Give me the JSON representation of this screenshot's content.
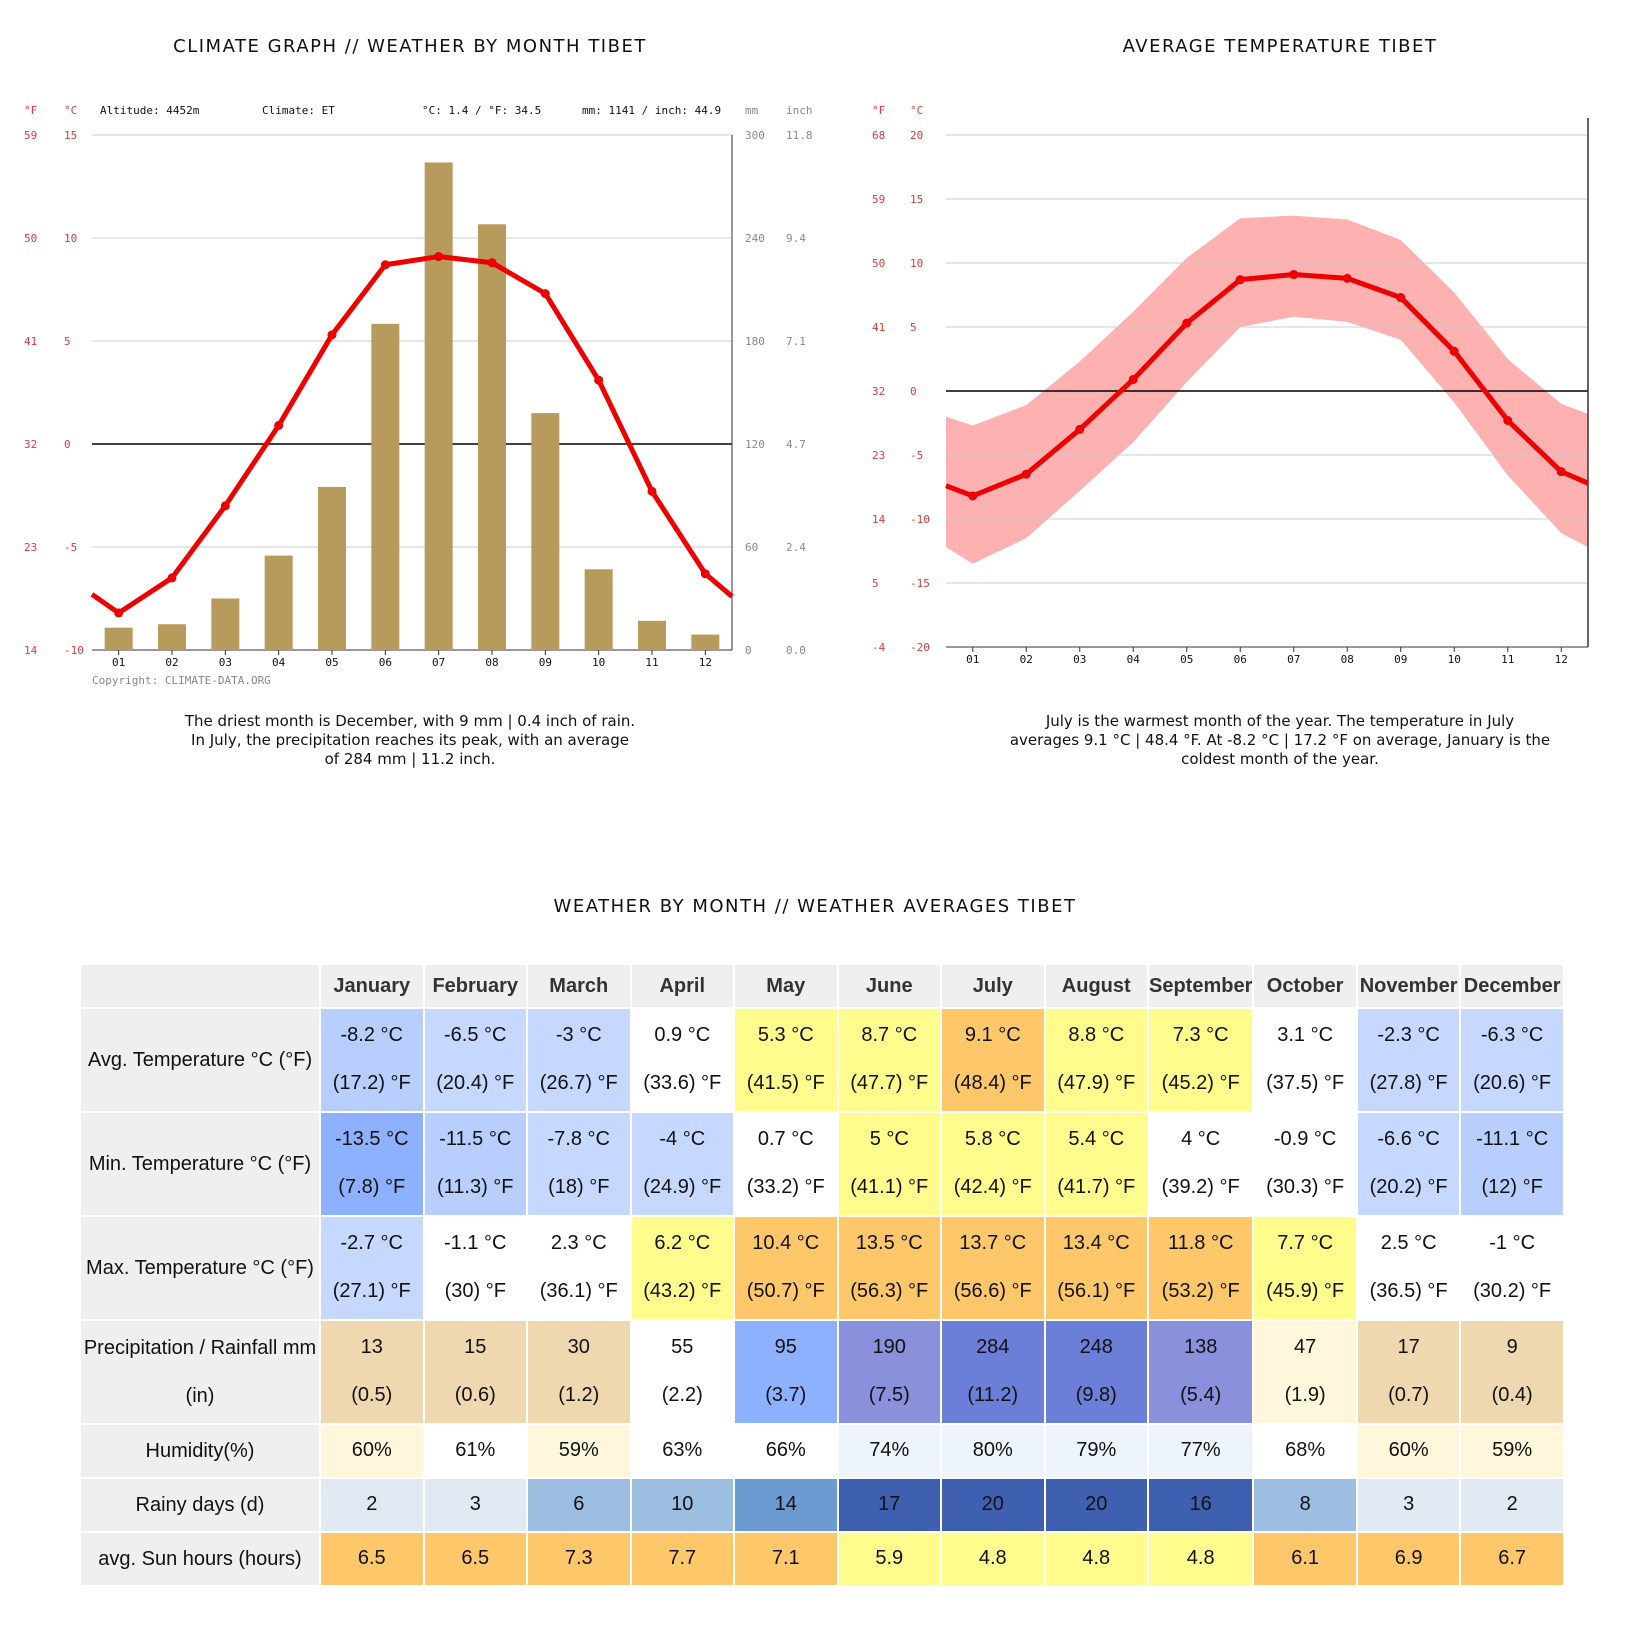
{
  "titles": {
    "climate_graph": "CLIMATE GRAPH // WEATHER BY MONTH TIBET",
    "avg_temperature": "AVERAGE TEMPERATURE TIBET",
    "table": "WEATHER BY MONTH // WEATHER AVERAGES TIBET"
  },
  "captions": {
    "climate_graph": [
      "The driest month is December, with 9 mm | 0.4 inch of rain.",
      "In July, the precipitation reaches its peak, with an average",
      "of 284 mm | 11.2 inch."
    ],
    "avg_temperature": [
      "July is the warmest month of the year. The temperature in July",
      "averages 9.1 °C | 48.4 °F. At -8.2 °C | 17.2 °F on average, January is the",
      "coldest month of the year."
    ]
  },
  "colors": {
    "temp_line": "#ee0000",
    "precip_bar": "#b79b5d",
    "temp_band": "#fdb1b1",
    "axis_label_red": "#d83b3b",
    "axis_label_grey": "#888888"
  },
  "chart_data": [
    {
      "type": "bar",
      "title": "CLIMATE GRAPH // WEATHER BY MONTH TIBET",
      "info": {
        "altitude": "Altitude: 4452m",
        "climate": "Climate: ET",
        "temp": "°C: 1.4 / °F: 34.5",
        "precip": "mm: 1141 / inch: 44.9"
      },
      "unit_labels": {
        "f": "°F",
        "c": "°C",
        "mm": "mm",
        "inch": "inch"
      },
      "copyright": "Copyright: CLIMATE-DATA.ORG",
      "categories": [
        "01",
        "02",
        "03",
        "04",
        "05",
        "06",
        "07",
        "08",
        "09",
        "10",
        "11",
        "12"
      ],
      "series": [
        {
          "name": "Precipitation (mm)",
          "type": "bar",
          "values": [
            13,
            15,
            30,
            55,
            95,
            190,
            284,
            248,
            138,
            47,
            17,
            9
          ]
        },
        {
          "name": "Avg. Temperature (°C)",
          "type": "line",
          "values": [
            -8.2,
            -6.5,
            -3,
            0.9,
            5.3,
            8.7,
            9.1,
            8.8,
            7.3,
            3.1,
            -2.3,
            -6.3
          ]
        }
      ],
      "y_left_c": {
        "range": [
          -10,
          15
        ],
        "ticks": [
          "15",
          "10",
          "5",
          "0",
          "-5",
          "-10"
        ]
      },
      "y_left_f": {
        "ticks": [
          "59",
          "50",
          "41",
          "32",
          "23",
          "14"
        ]
      },
      "y_right_mm": {
        "range": [
          0,
          300
        ],
        "ticks": [
          "300",
          "240",
          "180",
          "120",
          "60",
          "0"
        ]
      },
      "y_right_inch": {
        "ticks": [
          "11.8",
          "9.4",
          "7.1",
          "4.7",
          "2.4",
          "0.0"
        ]
      },
      "start_value_c": -7.3,
      "end_value_c": -7.4,
      "grid": true
    },
    {
      "type": "area",
      "title": "AVERAGE TEMPERATURE TIBET",
      "unit_labels": {
        "f": "°F",
        "c": "°C"
      },
      "categories": [
        "01",
        "02",
        "03",
        "04",
        "05",
        "06",
        "07",
        "08",
        "09",
        "10",
        "11",
        "12"
      ],
      "series": [
        {
          "name": "Avg. Temperature (°C)",
          "type": "line",
          "values": [
            -8.2,
            -6.5,
            -3,
            0.9,
            5.3,
            8.7,
            9.1,
            8.8,
            7.3,
            3.1,
            -2.3,
            -6.3
          ]
        },
        {
          "name": "Min. Temperature (°C)",
          "type": "band_low",
          "values": [
            -13.5,
            -11.5,
            -7.8,
            -4,
            0.7,
            5,
            5.8,
            5.4,
            4,
            -0.9,
            -6.6,
            -11.1
          ]
        },
        {
          "name": "Max. Temperature (°C)",
          "type": "band_high",
          "values": [
            -2.7,
            -1.1,
            2.3,
            6.2,
            10.4,
            13.5,
            13.7,
            13.4,
            11.8,
            7.7,
            2.5,
            -1
          ]
        }
      ],
      "start_values": {
        "avg": -7.4,
        "min": -12.2,
        "max": -2.0
      },
      "end_values": {
        "avg": -7.2,
        "min": -12.2,
        "max": -1.8
      },
      "y_c": {
        "range": [
          -20,
          20
        ],
        "ticks": [
          "20",
          "15",
          "10",
          "5",
          "0",
          "-5",
          "-10",
          "-15",
          "-20"
        ]
      },
      "y_f": {
        "ticks": [
          "68",
          "59",
          "50",
          "41",
          "32",
          "23",
          "14",
          "5",
          "-4"
        ]
      },
      "grid": true
    }
  ],
  "table": {
    "months": [
      "January",
      "February",
      "March",
      "April",
      "May",
      "June",
      "July",
      "August",
      "September",
      "October",
      "November",
      "December"
    ],
    "rows": [
      {
        "label": "Avg. Temperature °C (°F)",
        "cells": [
          {
            "l1": "-8.2 °C",
            "l2": "(17.2) °F",
            "bg": "#b7ceff"
          },
          {
            "l1": "-6.5 °C",
            "l2": "(20.4) °F",
            "bg": "#c6d8ff"
          },
          {
            "l1": "-3 °C",
            "l2": "(26.7) °F",
            "bg": "#c6d8ff"
          },
          {
            "l1": "0.9 °C",
            "l2": "(33.6) °F",
            "bg": "#ffffff"
          },
          {
            "l1": "5.3 °C",
            "l2": "(41.5) °F",
            "bg": "#fdfc8d"
          },
          {
            "l1": "8.7 °C",
            "l2": "(47.7) °F",
            "bg": "#fdfc8d"
          },
          {
            "l1": "9.1 °C",
            "l2": "(48.4) °F",
            "bg": "#fec86a"
          },
          {
            "l1": "8.8 °C",
            "l2": "(47.9) °F",
            "bg": "#fdfc8d"
          },
          {
            "l1": "7.3 °C",
            "l2": "(45.2) °F",
            "bg": "#fdfc8d"
          },
          {
            "l1": "3.1 °C",
            "l2": "(37.5) °F",
            "bg": "#ffffff"
          },
          {
            "l1": "-2.3 °C",
            "l2": "(27.8) °F",
            "bg": "#c6d8ff"
          },
          {
            "l1": "-6.3 °C",
            "l2": "(20.6) °F",
            "bg": "#c6d8ff"
          }
        ]
      },
      {
        "label": "Min. Temperature °C (°F)",
        "cells": [
          {
            "l1": "-13.5 °C",
            "l2": "(7.8) °F",
            "bg": "#8eb1ff"
          },
          {
            "l1": "-11.5 °C",
            "l2": "(11.3) °F",
            "bg": "#b7ceff"
          },
          {
            "l1": "-7.8 °C",
            "l2": "(18) °F",
            "bg": "#c6d8ff"
          },
          {
            "l1": "-4 °C",
            "l2": "(24.9) °F",
            "bg": "#c6d8ff"
          },
          {
            "l1": "0.7 °C",
            "l2": "(33.2) °F",
            "bg": "#ffffff"
          },
          {
            "l1": "5 °C",
            "l2": "(41.1) °F",
            "bg": "#fdfc8d"
          },
          {
            "l1": "5.8 °C",
            "l2": "(42.4) °F",
            "bg": "#fdfc8d"
          },
          {
            "l1": "5.4 °C",
            "l2": "(41.7) °F",
            "bg": "#fdfc8d"
          },
          {
            "l1": "4 °C",
            "l2": "(39.2) °F",
            "bg": "#ffffff"
          },
          {
            "l1": "-0.9 °C",
            "l2": "(30.3) °F",
            "bg": "#ffffff"
          },
          {
            "l1": "-6.6 °C",
            "l2": "(20.2) °F",
            "bg": "#c6d8ff"
          },
          {
            "l1": "-11.1 °C",
            "l2": "(12) °F",
            "bg": "#b7ceff"
          }
        ]
      },
      {
        "label": "Max. Temperature °C (°F)",
        "cells": [
          {
            "l1": "-2.7 °C",
            "l2": "(27.1) °F",
            "bg": "#c6d8ff"
          },
          {
            "l1": "-1.1 °C",
            "l2": "(30) °F",
            "bg": "#ffffff"
          },
          {
            "l1": "2.3 °C",
            "l2": "(36.1) °F",
            "bg": "#ffffff"
          },
          {
            "l1": "6.2 °C",
            "l2": "(43.2) °F",
            "bg": "#fdfc8d"
          },
          {
            "l1": "10.4 °C",
            "l2": "(50.7) °F",
            "bg": "#fec86a"
          },
          {
            "l1": "13.5 °C",
            "l2": "(56.3) °F",
            "bg": "#fec86a"
          },
          {
            "l1": "13.7 °C",
            "l2": "(56.6) °F",
            "bg": "#fec86a"
          },
          {
            "l1": "13.4 °C",
            "l2": "(56.1) °F",
            "bg": "#fec86a"
          },
          {
            "l1": "11.8 °C",
            "l2": "(53.2) °F",
            "bg": "#fec86a"
          },
          {
            "l1": "7.7 °C",
            "l2": "(45.9) °F",
            "bg": "#fdfc8d"
          },
          {
            "l1": "2.5 °C",
            "l2": "(36.5) °F",
            "bg": "#ffffff"
          },
          {
            "l1": "-1 °C",
            "l2": "(30.2) °F",
            "bg": "#ffffff"
          }
        ]
      },
      {
        "label": "Precipitation / Rainfall mm (in)",
        "cells": [
          {
            "l1": "13",
            "l2": "(0.5)",
            "bg": "#efd8b0"
          },
          {
            "l1": "15",
            "l2": "(0.6)",
            "bg": "#efd8b0"
          },
          {
            "l1": "30",
            "l2": "(1.2)",
            "bg": "#efd8b0"
          },
          {
            "l1": "55",
            "l2": "(2.2)",
            "bg": "#ffffff"
          },
          {
            "l1": "95",
            "l2": "(3.7)",
            "bg": "#8eb1ff"
          },
          {
            "l1": "190",
            "l2": "(7.5)",
            "bg": "#8a90db"
          },
          {
            "l1": "284",
            "l2": "(11.2)",
            "bg": "#6b7fd9"
          },
          {
            "l1": "248",
            "l2": "(9.8)",
            "bg": "#6b7fd9"
          },
          {
            "l1": "138",
            "l2": "(5.4)",
            "bg": "#8a90db"
          },
          {
            "l1": "47",
            "l2": "(1.9)",
            "bg": "#fff7dc"
          },
          {
            "l1": "17",
            "l2": "(0.7)",
            "bg": "#efd8b0"
          },
          {
            "l1": "9",
            "l2": "(0.4)",
            "bg": "#efd8b0"
          }
        ]
      },
      {
        "label": "Humidity(%)",
        "cells": [
          {
            "l1": "60%",
            "bg": "#fff7dc"
          },
          {
            "l1": "61%",
            "bg": "#ffffff"
          },
          {
            "l1": "59%",
            "bg": "#fff7dc"
          },
          {
            "l1": "63%",
            "bg": "#ffffff"
          },
          {
            "l1": "66%",
            "bg": "#ffffff"
          },
          {
            "l1": "74%",
            "bg": "#eef4fb"
          },
          {
            "l1": "80%",
            "bg": "#eef4fb"
          },
          {
            "l1": "79%",
            "bg": "#eef4fb"
          },
          {
            "l1": "77%",
            "bg": "#eef4fb"
          },
          {
            "l1": "68%",
            "bg": "#ffffff"
          },
          {
            "l1": "60%",
            "bg": "#fff7dc"
          },
          {
            "l1": "59%",
            "bg": "#fff7dc"
          }
        ]
      },
      {
        "label": "Rainy days (d)",
        "cells": [
          {
            "l1": "2",
            "bg": "#e1e9f3"
          },
          {
            "l1": "3",
            "bg": "#e1e9f3"
          },
          {
            "l1": "6",
            "bg": "#9cbee0"
          },
          {
            "l1": "10",
            "bg": "#9cbee0"
          },
          {
            "l1": "14",
            "bg": "#6b9bd0"
          },
          {
            "l1": "17",
            "bg": "#3f5fb0"
          },
          {
            "l1": "20",
            "bg": "#3f5fb0"
          },
          {
            "l1": "20",
            "bg": "#3f5fb0"
          },
          {
            "l1": "16",
            "bg": "#3f5fb0"
          },
          {
            "l1": "8",
            "bg": "#9cbee0"
          },
          {
            "l1": "3",
            "bg": "#e1e9f3"
          },
          {
            "l1": "2",
            "bg": "#e1e9f3"
          }
        ]
      },
      {
        "label": "avg. Sun hours (hours)",
        "cells": [
          {
            "l1": "6.5",
            "bg": "#fec86a"
          },
          {
            "l1": "6.5",
            "bg": "#fec86a"
          },
          {
            "l1": "7.3",
            "bg": "#fec86a"
          },
          {
            "l1": "7.7",
            "bg": "#fec86a"
          },
          {
            "l1": "7.1",
            "bg": "#fec86a"
          },
          {
            "l1": "5.9",
            "bg": "#fdfc8d"
          },
          {
            "l1": "4.8",
            "bg": "#fdfc8d"
          },
          {
            "l1": "4.8",
            "bg": "#fdfc8d"
          },
          {
            "l1": "4.8",
            "bg": "#fdfc8d"
          },
          {
            "l1": "6.1",
            "bg": "#fec86a"
          },
          {
            "l1": "6.9",
            "bg": "#fec86a"
          },
          {
            "l1": "6.7",
            "bg": "#fec86a"
          }
        ]
      }
    ]
  }
}
